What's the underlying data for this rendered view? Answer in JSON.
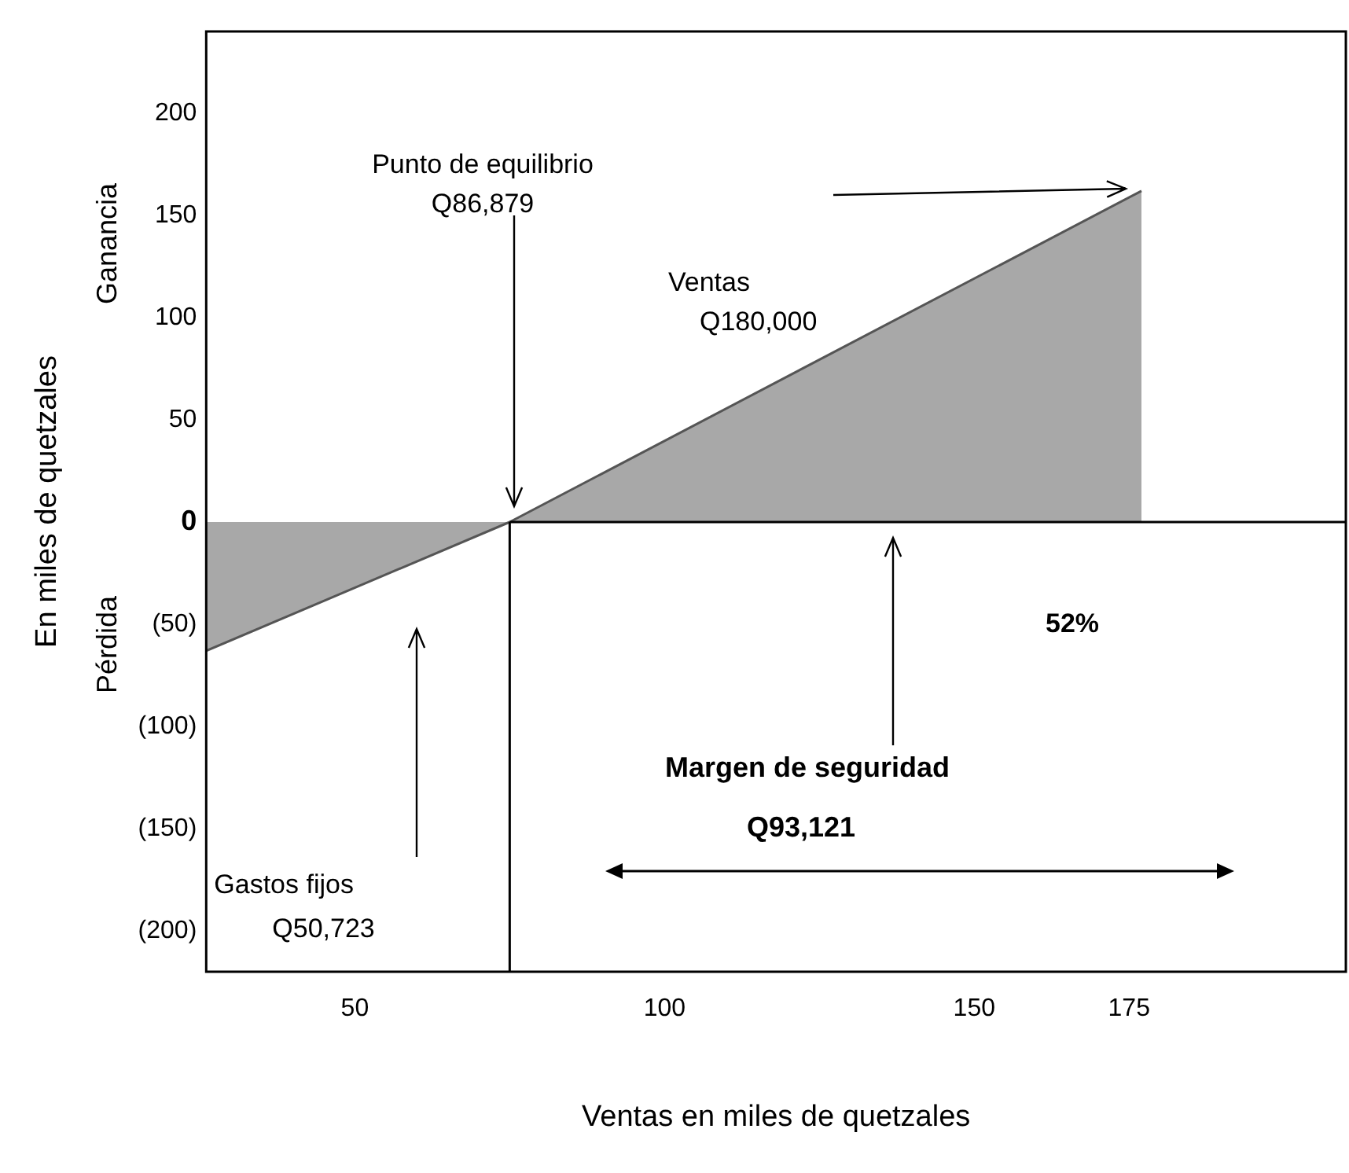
{
  "chart_data": {
    "type": "area",
    "xlabel": "Ventas en miles de quetzales",
    "ylabel": "En miles de quetzales",
    "series": [
      {
        "x": [
          26,
          75,
          177
        ],
        "values": [
          -63,
          0,
          162
        ],
        "color": "#a8a8a8"
      }
    ],
    "xlim": [
      26,
      210
    ],
    "xticks": [
      50,
      100,
      150,
      175
    ],
    "ylim": [
      -220,
      240
    ],
    "yticks": [
      {
        "value": 200,
        "label": "200"
      },
      {
        "value": 150,
        "label": "150"
      },
      {
        "value": 100,
        "label": "100"
      },
      {
        "value": 50,
        "label": "50"
      },
      {
        "value": 0,
        "label": "0"
      },
      {
        "value": -50,
        "label": "(50)"
      },
      {
        "value": -100,
        "label": "(100)"
      },
      {
        "value": -150,
        "label": "(150)"
      },
      {
        "value": -200,
        "label": "(200)"
      }
    ],
    "ref_lines": [
      {
        "axis": "x",
        "value": 75,
        "color": "#000000"
      },
      {
        "axis": "y",
        "value": 0,
        "color": "#000000"
      }
    ],
    "grid": false,
    "legend": false,
    "annotations": [
      "Punto de equilibrio\nQ86,879",
      "Ventas\nQ180,000",
      "Gastos fijos\nQ50,723",
      "Margen de seguridad",
      "Q93,121",
      "52%",
      "Ganancia",
      "Pérdida"
    ]
  }
}
